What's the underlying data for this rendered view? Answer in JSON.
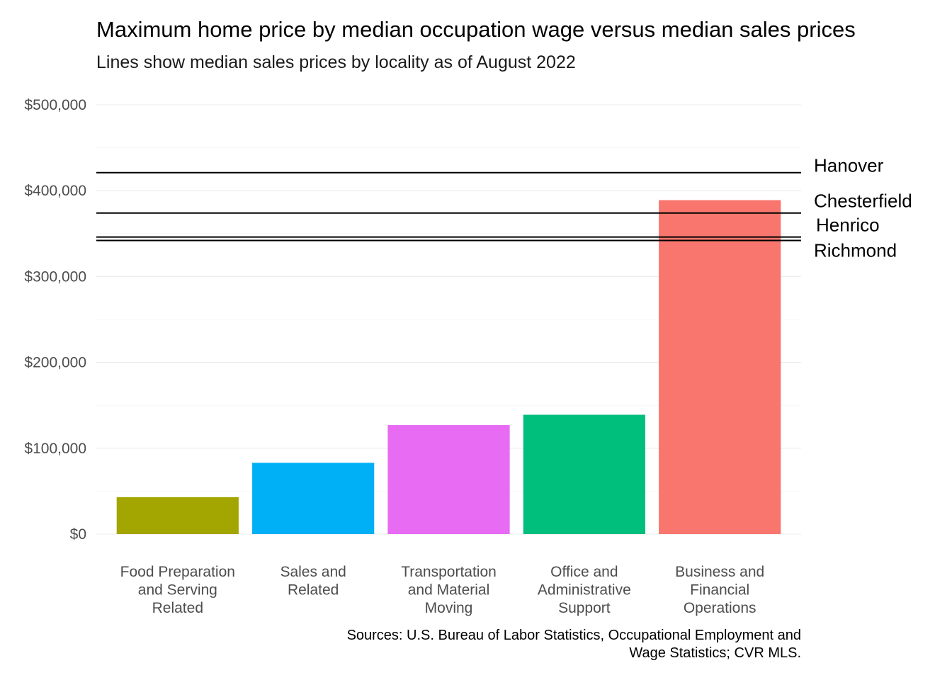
{
  "chart_data": {
    "type": "bar",
    "title": "Maximum home price by median occupation wage versus median sales prices",
    "subtitle": "Lines show median sales prices by locality as of August 2022",
    "caption": [
      "Sources: U.S. Bureau of Labor Statistics, Occupational Employment and",
      "Wage Statistics; CVR MLS."
    ],
    "xlabel": "",
    "ylabel": "",
    "ylim": [
      0,
      500000
    ],
    "yticks": [
      {
        "value": 0,
        "label": "$0"
      },
      {
        "value": 100000,
        "label": "$100,000"
      },
      {
        "value": 200000,
        "label": "$200,000"
      },
      {
        "value": 300000,
        "label": "$300,000"
      },
      {
        "value": 400000,
        "label": "$400,000"
      },
      {
        "value": 500000,
        "label": "$500,000"
      }
    ],
    "grid": true,
    "legend": "none",
    "bars": [
      {
        "category": [
          "Food Preparation",
          "and Serving",
          "Related"
        ],
        "value": 43000,
        "color": "#A3A500"
      },
      {
        "category": [
          "Sales and",
          "Related"
        ],
        "value": 83000,
        "color": "#00B0F6"
      },
      {
        "category": [
          "Transportation",
          "and Material",
          "Moving"
        ],
        "value": 127000,
        "color": "#E76BF3"
      },
      {
        "category": [
          "Office and",
          "Administrative",
          "Support"
        ],
        "value": 139000,
        "color": "#00BF7D"
      },
      {
        "category": [
          "Business and",
          "Financial",
          "Operations"
        ],
        "value": 389000,
        "color": "#F8766D"
      }
    ],
    "reference_lines": [
      {
        "name": "Hanover",
        "value": 421000
      },
      {
        "name": "Chesterfield",
        "value": 374000
      },
      {
        "name": "Henrico",
        "value": 346000
      },
      {
        "name": "Richmond",
        "value": 342000
      }
    ]
  }
}
